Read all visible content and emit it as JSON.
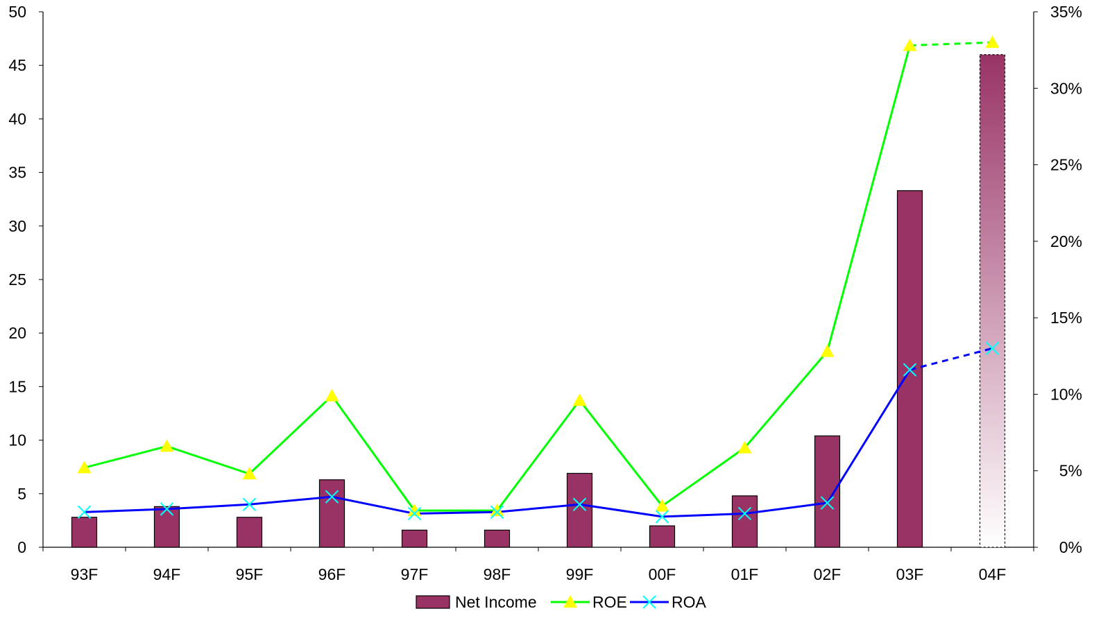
{
  "chart_data": {
    "type": "bar",
    "categories": [
      "93F",
      "94F",
      "95F",
      "96F",
      "97F",
      "98F",
      "99F",
      "00F",
      "01F",
      "02F",
      "03F",
      "04F"
    ],
    "forecast_categories": [
      "04F"
    ],
    "y_left": {
      "range": [
        0,
        50
      ],
      "step": 5
    },
    "y_right": {
      "range": [
        0,
        35
      ],
      "step": 5,
      "unit": "%",
      "tick_labels": [
        "0%",
        "5%",
        "10%",
        "15%",
        "20%",
        "25%",
        "30%",
        "35%"
      ]
    },
    "series": [
      {
        "name": "Net Income",
        "kind": "bar",
        "axis": "left",
        "color": "#993366",
        "values": [
          2.8,
          3.8,
          2.8,
          6.3,
          1.6,
          1.6,
          6.9,
          2.0,
          4.8,
          10.4,
          33.3,
          46.0
        ]
      },
      {
        "name": "ROE",
        "kind": "line",
        "axis": "right",
        "color": "#00ff00",
        "marker": "triangle",
        "marker_color": "#ffff00",
        "values": [
          5.2,
          6.6,
          4.8,
          9.9,
          2.4,
          2.4,
          9.6,
          2.7,
          6.5,
          12.8,
          32.8,
          33.0
        ]
      },
      {
        "name": "ROA",
        "kind": "line",
        "axis": "right",
        "color": "#0000ff",
        "marker": "x",
        "marker_color": "#00ffff",
        "values": [
          2.3,
          2.5,
          2.8,
          3.3,
          2.2,
          2.3,
          2.8,
          2.0,
          2.2,
          2.9,
          11.6,
          13.0
        ]
      }
    ],
    "legend": {
      "position": "bottom"
    },
    "grid": false
  }
}
